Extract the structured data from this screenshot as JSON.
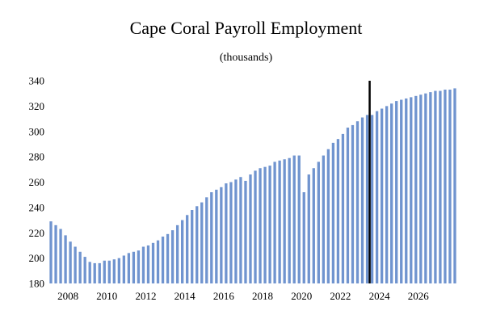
{
  "chart_data": {
    "type": "bar",
    "title": "Cape Coral Payroll Employment",
    "subtitle": "(thousands)",
    "xlabel": "",
    "ylabel": "",
    "ylim": [
      180,
      340
    ],
    "yticks": [
      180,
      200,
      220,
      240,
      260,
      280,
      300,
      320,
      340
    ],
    "xticks": [
      "2008",
      "2010",
      "2012",
      "2014",
      "2016",
      "2018",
      "2020",
      "2022",
      "2024",
      "2026"
    ],
    "x_start_year": 2007,
    "periods_per_year": 4,
    "forecast_start": "2023Q3",
    "bar_color": "#7094cf",
    "forecast_line_color": "#000000",
    "grid": false,
    "series": [
      {
        "values": [
          229,
          226,
          223,
          218,
          213,
          209,
          205,
          201,
          197,
          196,
          196,
          198,
          198,
          199,
          200,
          202,
          204,
          205,
          206,
          209,
          210,
          212,
          214,
          217,
          219,
          222,
          226,
          230,
          234,
          238,
          241,
          244,
          248,
          252,
          254,
          256,
          259,
          260,
          262,
          264,
          261,
          266,
          269,
          271,
          272,
          273,
          276,
          277,
          278,
          279,
          281,
          281,
          252,
          266,
          271,
          276,
          281,
          286,
          291,
          294,
          298,
          303,
          305,
          308,
          311,
          313,
          313,
          316,
          318,
          320,
          322,
          324,
          325,
          326,
          327,
          328,
          329,
          330,
          331,
          332,
          332,
          333,
          333,
          334
        ]
      }
    ]
  }
}
